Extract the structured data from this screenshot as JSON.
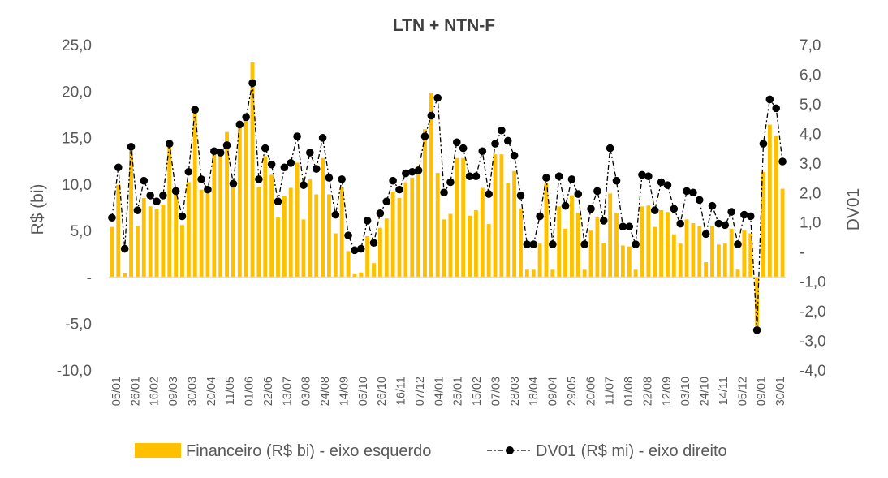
{
  "chart_data": {
    "type": "bar+line",
    "title": "LTN + NTN-F",
    "ylabel": "R$ (bi)",
    "y2label": "DV01",
    "ylim": [
      -10,
      25
    ],
    "y2lim": [
      -4,
      7
    ],
    "yticks": [
      "25,0",
      "20,0",
      "15,0",
      "10,0",
      "5,0",
      "-",
      "-5,0",
      "-10,0"
    ],
    "y2ticks": [
      "7,0",
      "6,0",
      "5,0",
      "4,0",
      "3,0",
      "2,0",
      "1,0",
      "-",
      "-1,0",
      "-2,0",
      "-3,0",
      "-4,0"
    ],
    "xtick_labels": [
      "05/01",
      "26/01",
      "16/02",
      "09/03",
      "30/03",
      "20/04",
      "11/05",
      "01/06",
      "22/06",
      "13/07",
      "03/08",
      "24/08",
      "14/09",
      "05/10",
      "26/10",
      "16/11",
      "07/12",
      "04/01",
      "25/01",
      "15/02",
      "07/03",
      "28/03",
      "18/04",
      "09/04",
      "29/05",
      "20/06",
      "11/07",
      "01/08",
      "22/08",
      "12/09",
      "03/10",
      "24/10",
      "14/11",
      "05/12",
      "09/01",
      "30/01"
    ],
    "series": [
      {
        "name": "Financeiro (R$ bi) - eixo esquerdo",
        "type": "bar",
        "axis": "left",
        "color": "#FFC000",
        "values": [
          5.4,
          9.9,
          0.4,
          13.8,
          5.5,
          8.5,
          7.6,
          7.3,
          7.8,
          14.1,
          8.9,
          5.6,
          10.2,
          18.2,
          9.4,
          9.0,
          13.3,
          13.2,
          15.6,
          10.2,
          16.8,
          17.3,
          23.1,
          9.7,
          13.0,
          11.0,
          6.4,
          8.7,
          9.6,
          12.3,
          6.2,
          10.5,
          8.9,
          12.8,
          8.9,
          4.7,
          9.7,
          2.8,
          0.3,
          0.5,
          4.4,
          1.5,
          5.3,
          6.3,
          9.2,
          8.5,
          10.2,
          10.7,
          12.0,
          15.9,
          19.8,
          11.2,
          6.2,
          6.8,
          12.8,
          12.8,
          6.6,
          7.2,
          9.6,
          5.7,
          13.2,
          13.2,
          10.1,
          11.4,
          7.4,
          0.8,
          0.8,
          3.6,
          10.1,
          0.8,
          7.6,
          5.2,
          8.8,
          6.9,
          0.8,
          5.0,
          6.4,
          3.7,
          9.0,
          6.9,
          3.4,
          3.3,
          0.8,
          7.6,
          7.7,
          5.4,
          7.2,
          7.0,
          4.6,
          3.6,
          6.2,
          5.8,
          5.5,
          1.6,
          5.5,
          3.5,
          3.6,
          5.2,
          0.8,
          5.1,
          4.7,
          -5.3,
          11.3,
          16.4,
          15.2,
          9.5
        ]
      },
      {
        "name": "DV01 (R$ mi) - eixo direito",
        "type": "line",
        "axis": "right",
        "color": "#000000",
        "values": [
          1.15,
          2.85,
          0.1,
          3.55,
          1.4,
          2.4,
          1.9,
          1.7,
          1.9,
          3.65,
          2.05,
          1.2,
          2.7,
          4.8,
          2.45,
          2.1,
          3.4,
          3.35,
          3.6,
          2.3,
          4.3,
          4.55,
          5.7,
          2.45,
          3.5,
          2.95,
          1.7,
          2.85,
          3.0,
          3.9,
          2.25,
          3.35,
          2.8,
          3.85,
          2.5,
          1.25,
          2.45,
          0.55,
          0.05,
          0.1,
          1.05,
          0.3,
          1.3,
          1.7,
          2.4,
          2.1,
          2.65,
          2.7,
          2.75,
          3.9,
          4.6,
          5.2,
          2.0,
          2.35,
          3.7,
          3.5,
          2.55,
          2.55,
          3.4,
          1.95,
          3.65,
          4.1,
          3.75,
          3.25,
          1.9,
          0.25,
          0.25,
          1.2,
          2.5,
          0.25,
          2.55,
          1.55,
          2.45,
          1.95,
          0.25,
          1.45,
          2.05,
          1.05,
          3.5,
          2.4,
          0.85,
          0.85,
          0.25,
          2.6,
          2.55,
          1.4,
          2.35,
          2.25,
          1.45,
          0.95,
          2.05,
          2.0,
          1.75,
          0.6,
          1.55,
          0.95,
          0.9,
          1.35,
          0.25,
          1.25,
          1.2,
          -2.65,
          3.65,
          5.15,
          4.85,
          3.05
        ]
      }
    ],
    "legend": "bottom"
  }
}
